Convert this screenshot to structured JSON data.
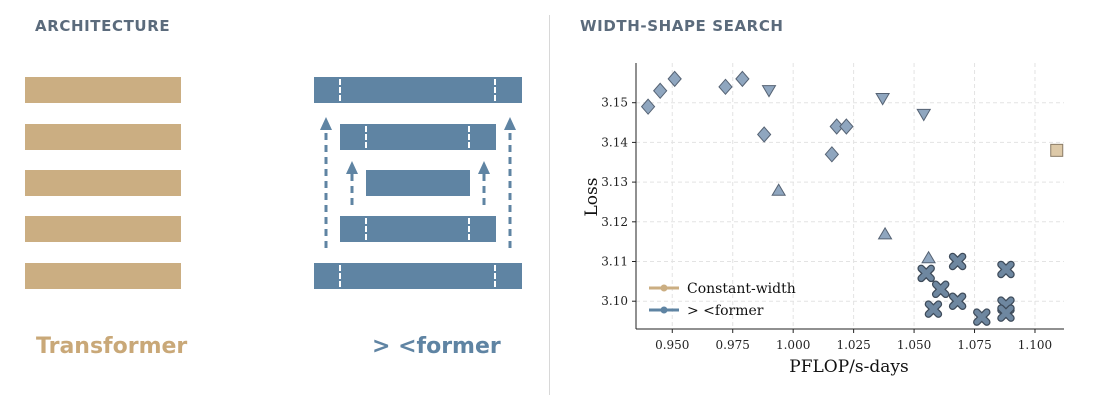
{
  "architecture": {
    "title": "ARCHITECTURE",
    "transformer_label": "Transformer",
    "former_label": "> <former",
    "colors": {
      "transformer": "#cbae82",
      "former": "#5f84a3"
    }
  },
  "search": {
    "title": "WIDTH-SHAPE SEARCH"
  },
  "chart_data": {
    "type": "scatter",
    "title": "",
    "xlabel": "PFLOP/s-days",
    "ylabel": "Loss",
    "xlim": [
      0.935,
      1.112
    ],
    "ylim": [
      3.093,
      3.16
    ],
    "xticks": [
      0.95,
      0.975,
      1.0,
      1.025,
      1.05,
      1.075,
      1.1
    ],
    "xtick_labels": [
      "0.950",
      "0.975",
      "1.000",
      "1.025",
      "1.050",
      "1.075",
      "1.100"
    ],
    "yticks": [
      3.1,
      3.11,
      3.12,
      3.13,
      3.14,
      3.15
    ],
    "ytick_labels": [
      "3.10",
      "3.11",
      "3.12",
      "3.13",
      "3.14",
      "3.15"
    ],
    "grid": true,
    "legend_position": "bottom-left",
    "legend": [
      {
        "label": "Constant-width",
        "color": "#cbae82"
      },
      {
        "label": "> <former",
        "color": "#5f84a3"
      }
    ],
    "series": [
      {
        "marker": "diamond",
        "color": "#8fa6bf",
        "points": [
          [
            0.94,
            3.149
          ],
          [
            0.945,
            3.153
          ],
          [
            0.951,
            3.156
          ],
          [
            0.972,
            3.154
          ],
          [
            0.979,
            3.156
          ],
          [
            0.988,
            3.142
          ],
          [
            1.016,
            3.137
          ],
          [
            1.018,
            3.144
          ],
          [
            1.022,
            3.144
          ]
        ]
      },
      {
        "marker": "triangle-down",
        "color": "#8fa6bf",
        "points": [
          [
            0.99,
            3.153
          ],
          [
            1.037,
            3.151
          ],
          [
            1.054,
            3.147
          ]
        ]
      },
      {
        "marker": "triangle-up",
        "color": "#8fa6bf",
        "points": [
          [
            0.994,
            3.128
          ],
          [
            1.038,
            3.117
          ],
          [
            1.056,
            3.111
          ]
        ]
      },
      {
        "marker": "x",
        "color": "#6e87a0",
        "points": [
          [
            1.055,
            3.107
          ],
          [
            1.058,
            3.098
          ],
          [
            1.061,
            3.103
          ],
          [
            1.068,
            3.11
          ],
          [
            1.068,
            3.1
          ],
          [
            1.078,
            3.096
          ],
          [
            1.088,
            3.108
          ],
          [
            1.088,
            3.099
          ],
          [
            1.088,
            3.097
          ]
        ]
      },
      {
        "marker": "square",
        "color": "#ddc9a8",
        "points": [
          [
            1.109,
            3.138
          ]
        ]
      }
    ]
  }
}
